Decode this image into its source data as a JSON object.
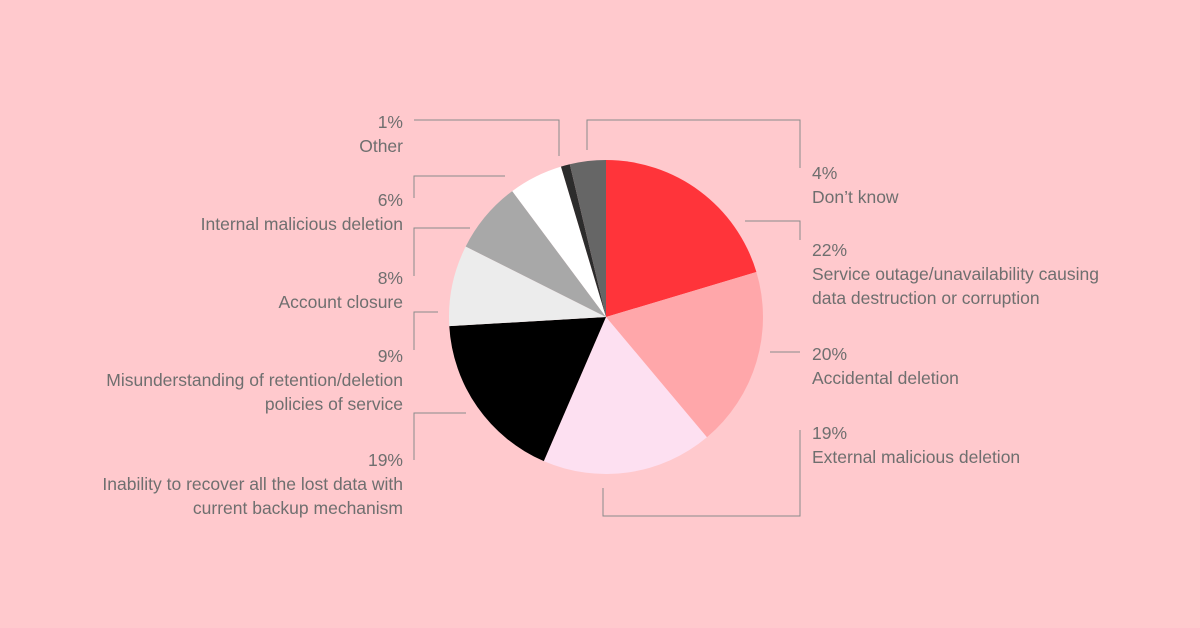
{
  "chart_data": {
    "type": "pie",
    "slices": [
      {
        "value": 22,
        "pct": "22%",
        "label": [
          "Service outage/unavailability causing",
          "data destruction or corruption"
        ],
        "color": "#ff343a"
      },
      {
        "value": 20,
        "pct": "20%",
        "label": [
          "Accidental deletion"
        ],
        "color": "#ffa7aa"
      },
      {
        "value": 19,
        "pct": "19%",
        "label": [
          "External malicious deletion"
        ],
        "color": "#fde0f1"
      },
      {
        "value": 19,
        "pct": "19%",
        "label": [
          "Inability to recover all the lost data with",
          "current backup mechanism"
        ],
        "color": "#000000"
      },
      {
        "value": 9,
        "pct": "9%",
        "label": [
          "Misunderstanding of retention/deletion",
          "policies of service"
        ],
        "color": "#ececec"
      },
      {
        "value": 8,
        "pct": "8%",
        "label": [
          "Account closure"
        ],
        "color": "#a8a8a8"
      },
      {
        "value": 6,
        "pct": "6%",
        "label": [
          "Internal malicious deletion"
        ],
        "color": "#ffffff"
      },
      {
        "value": 1,
        "pct": "1%",
        "label": [
          "Other"
        ],
        "color": "#2c2c2c"
      },
      {
        "value": 4,
        "pct": "4%",
        "label": [
          "Don’t know"
        ],
        "color": "#666666"
      }
    ]
  }
}
